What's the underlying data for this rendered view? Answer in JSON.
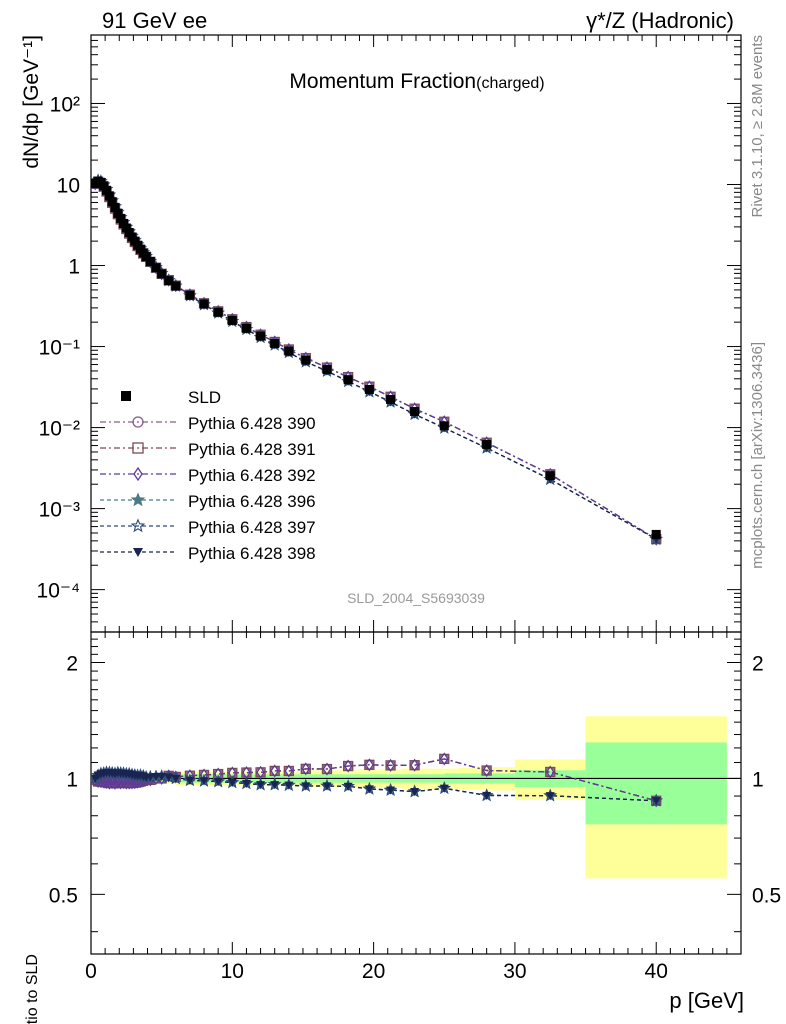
{
  "chart_data": {
    "type": "line",
    "header_left": "91 GeV ee",
    "header_right": "γ*/Z (Hadronic)",
    "title": "Momentum Fraction",
    "title_suffix": "(charged)",
    "side_text_top": "Rivet 3.1.10, ≥ 2.8M events",
    "side_text_bottom": "mcplots.cern.ch [arXiv:1306.3436]",
    "watermark": "SLD_2004_S5693039",
    "xlabel": "p [GeV]",
    "ylabel_top": "dN/dp [GeV⁻¹]",
    "ylabel_bottom": "Ratio to SLD",
    "xlim": [
      0,
      46
    ],
    "ylim_top": [
      3e-05,
      700
    ],
    "yscale_top": "log",
    "ylim_bottom": [
      0.35,
      2.4
    ],
    "yscale_bottom": "log",
    "x_ticks": [
      "0",
      "10",
      "20",
      "30",
      "40"
    ],
    "y_ticks_top": [
      "10",
      "1",
      "10²",
      "10⁻¹",
      "10⁻²",
      "10⁻³",
      "10⁻⁴"
    ],
    "y_ticks_bottom": [
      "2",
      "1",
      "0.5"
    ],
    "legend_position": "left-middle",
    "data": {
      "name": "SLD",
      "x": [
        0.3,
        0.5,
        0.7,
        0.9,
        1.1,
        1.3,
        1.5,
        1.7,
        1.9,
        2.1,
        2.3,
        2.5,
        2.7,
        2.9,
        3.1,
        3.3,
        3.5,
        3.7,
        3.9,
        4.2,
        4.6,
        5.0,
        5.5,
        6.0,
        7.0,
        8.0,
        9.0,
        10.0,
        11.0,
        12.0,
        13.0,
        14.0,
        15.2,
        16.7,
        18.2,
        19.7,
        21.2,
        22.9,
        25.0,
        28.0,
        32.5,
        40.0
      ],
      "y": [
        10.3,
        11.0,
        10.6,
        9.6,
        8.4,
        7.2,
        6.1,
        5.2,
        4.4,
        3.8,
        3.3,
        2.9,
        2.55,
        2.25,
        2.0,
        1.78,
        1.59,
        1.43,
        1.29,
        1.12,
        0.94,
        0.79,
        0.65,
        0.56,
        0.43,
        0.335,
        0.265,
        0.21,
        0.168,
        0.135,
        0.109,
        0.088,
        0.068,
        0.052,
        0.039,
        0.0295,
        0.0222,
        0.0158,
        0.0105,
        0.0062,
        0.00255,
        0.00048
      ],
      "band_edges": [
        0,
        1,
        2,
        3,
        4,
        5,
        6,
        7,
        8,
        9,
        10,
        11,
        12,
        13,
        14,
        15,
        16,
        17,
        18,
        19,
        20,
        21,
        22,
        23,
        24,
        25,
        26,
        27,
        28,
        30,
        35,
        45
      ],
      "band_stat": [
        0.02,
        0.02,
        0.02,
        0.02,
        0.02,
        0.02,
        0.025,
        0.025,
        0.025,
        0.025,
        0.025,
        0.025,
        0.025,
        0.025,
        0.025,
        0.025,
        0.025,
        0.025,
        0.025,
        0.025,
        0.025,
        0.025,
        0.025,
        0.025,
        0.025,
        0.03,
        0.03,
        0.03,
        0.03,
        0.05,
        0.24
      ],
      "band_total": [
        0.03,
        0.03,
        0.03,
        0.03,
        0.03,
        0.03,
        0.04,
        0.04,
        0.04,
        0.04,
        0.04,
        0.045,
        0.045,
        0.045,
        0.045,
        0.05,
        0.05,
        0.05,
        0.05,
        0.055,
        0.055,
        0.055,
        0.06,
        0.06,
        0.06,
        0.06,
        0.065,
        0.065,
        0.07,
        0.12,
        0.45
      ]
    },
    "series": [
      {
        "name": "Pythia 6.428 390",
        "color": "#8a5a8f",
        "marker": "circle-open",
        "dash": "6,3,2,3",
        "y": [
          10.2,
          10.8,
          10.4,
          9.4,
          8.2,
          7.0,
          5.95,
          5.05,
          4.3,
          3.7,
          3.22,
          2.82,
          2.48,
          2.19,
          1.95,
          1.74,
          1.56,
          1.41,
          1.28,
          1.11,
          0.94,
          0.79,
          0.66,
          0.565,
          0.437,
          0.342,
          0.272,
          0.217,
          0.174,
          0.14,
          0.114,
          0.092,
          0.072,
          0.055,
          0.042,
          0.032,
          0.024,
          0.0171,
          0.0118,
          0.0065,
          0.00265,
          0.00042
        ]
      },
      {
        "name": "Pythia 6.428 391",
        "color": "#7a4a55",
        "marker": "square-open",
        "dash": "6,3,2,3",
        "y": [
          10.2,
          10.8,
          10.4,
          9.4,
          8.2,
          7.0,
          5.95,
          5.05,
          4.3,
          3.7,
          3.22,
          2.82,
          2.48,
          2.19,
          1.95,
          1.74,
          1.56,
          1.41,
          1.28,
          1.11,
          0.94,
          0.79,
          0.66,
          0.565,
          0.437,
          0.342,
          0.272,
          0.217,
          0.174,
          0.14,
          0.114,
          0.092,
          0.072,
          0.055,
          0.042,
          0.032,
          0.024,
          0.0171,
          0.0118,
          0.0065,
          0.00265,
          0.00042
        ]
      },
      {
        "name": "Pythia 6.428 392",
        "color": "#5a3a9a",
        "marker": "diamond-open",
        "dash": "6,3,2,3",
        "y": [
          10.2,
          10.8,
          10.4,
          9.4,
          8.2,
          7.0,
          5.95,
          5.05,
          4.3,
          3.7,
          3.22,
          2.82,
          2.48,
          2.19,
          1.95,
          1.74,
          1.56,
          1.41,
          1.28,
          1.11,
          0.94,
          0.79,
          0.66,
          0.565,
          0.437,
          0.342,
          0.272,
          0.217,
          0.174,
          0.14,
          0.114,
          0.092,
          0.072,
          0.055,
          0.042,
          0.032,
          0.024,
          0.0171,
          0.0118,
          0.0065,
          0.00265,
          0.00042
        ]
      },
      {
        "name": "Pythia 6.428 396",
        "color": "#4a7a88",
        "marker": "star-filled",
        "dash": "4,3",
        "y": [
          10.3,
          11.2,
          10.9,
          9.9,
          8.7,
          7.45,
          6.3,
          5.35,
          4.55,
          3.92,
          3.4,
          2.98,
          2.62,
          2.3,
          2.04,
          1.81,
          1.62,
          1.45,
          1.3,
          1.13,
          0.95,
          0.8,
          0.655,
          0.56,
          0.425,
          0.33,
          0.26,
          0.205,
          0.163,
          0.13,
          0.105,
          0.0845,
          0.065,
          0.0497,
          0.0372,
          0.0277,
          0.0207,
          0.0146,
          0.0099,
          0.0056,
          0.0023,
          0.00042
        ]
      },
      {
        "name": "Pythia 6.428 397",
        "color": "#2a4a7a",
        "marker": "star-open",
        "dash": "4,3",
        "y": [
          10.3,
          11.2,
          10.9,
          9.9,
          8.7,
          7.45,
          6.3,
          5.35,
          4.55,
          3.92,
          3.4,
          2.98,
          2.62,
          2.3,
          2.04,
          1.81,
          1.62,
          1.45,
          1.3,
          1.13,
          0.95,
          0.8,
          0.655,
          0.56,
          0.425,
          0.33,
          0.26,
          0.205,
          0.163,
          0.13,
          0.105,
          0.0845,
          0.065,
          0.0497,
          0.0372,
          0.0277,
          0.0207,
          0.0146,
          0.0099,
          0.0056,
          0.0023,
          0.00042
        ]
      },
      {
        "name": "Pythia 6.428 398",
        "color": "#1a2450",
        "marker": "triangle-down-filled",
        "dash": "4,3",
        "y": [
          10.3,
          11.2,
          10.9,
          9.9,
          8.7,
          7.45,
          6.3,
          5.35,
          4.55,
          3.92,
          3.4,
          2.98,
          2.62,
          2.3,
          2.04,
          1.81,
          1.62,
          1.45,
          1.3,
          1.13,
          0.95,
          0.8,
          0.655,
          0.56,
          0.425,
          0.33,
          0.26,
          0.205,
          0.163,
          0.13,
          0.105,
          0.0845,
          0.065,
          0.0497,
          0.0372,
          0.0277,
          0.0207,
          0.0146,
          0.0099,
          0.0056,
          0.0023,
          0.00042
        ]
      }
    ]
  }
}
